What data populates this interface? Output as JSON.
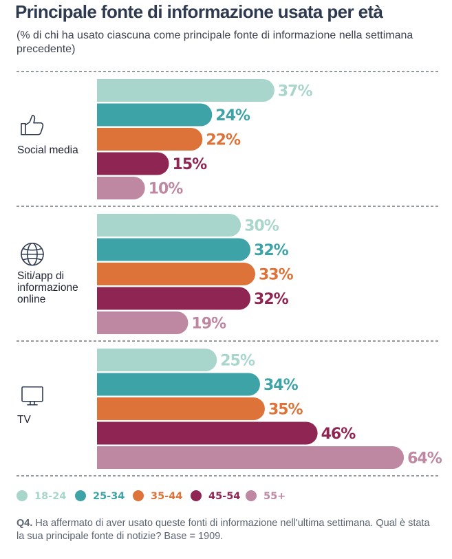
{
  "header": {
    "title": "Principale fonte di informazione usata per età",
    "subtitle": "(% di chi ha usato ciascuna come principale fonte di informazione nella settimana precedente)"
  },
  "footnote": {
    "code": "Q4.",
    "text": " Ha affermato di aver usato queste fonti di informazione nell'ultima settimana. Qual è stata la sua principale fonte di notizie? Base = 1909."
  },
  "colors": {
    "18-24": "#a8d5cc",
    "25-34": "#3ea3a6",
    "35-44": "#dd7339",
    "45-54": "#8e2553",
    "55+": "#be87a2",
    "divider": "#555a66",
    "icon": "#2e3a50"
  },
  "chart_data": {
    "type": "bar",
    "orientation": "horizontal",
    "categories": [
      {
        "label_lines": [
          "Social media"
        ],
        "icon": "thumbs-up-icon"
      },
      {
        "label_lines": [
          "Siti/app di",
          "informazione",
          "online"
        ],
        "icon": "globe-icon"
      },
      {
        "label_lines": [
          "TV"
        ],
        "icon": "tv-icon"
      }
    ],
    "series": [
      {
        "name": "18-24",
        "values": [
          37,
          30,
          25
        ]
      },
      {
        "name": "25-34",
        "values": [
          24,
          32,
          34
        ]
      },
      {
        "name": "35-44",
        "values": [
          22,
          33,
          35
        ]
      },
      {
        "name": "45-54",
        "values": [
          15,
          32,
          46
        ]
      },
      {
        "name": "55+",
        "values": [
          10,
          19,
          64
        ]
      }
    ],
    "value_suffix": "%",
    "xlim": [
      0,
      64
    ],
    "legend_position": "bottom",
    "grid": false
  }
}
